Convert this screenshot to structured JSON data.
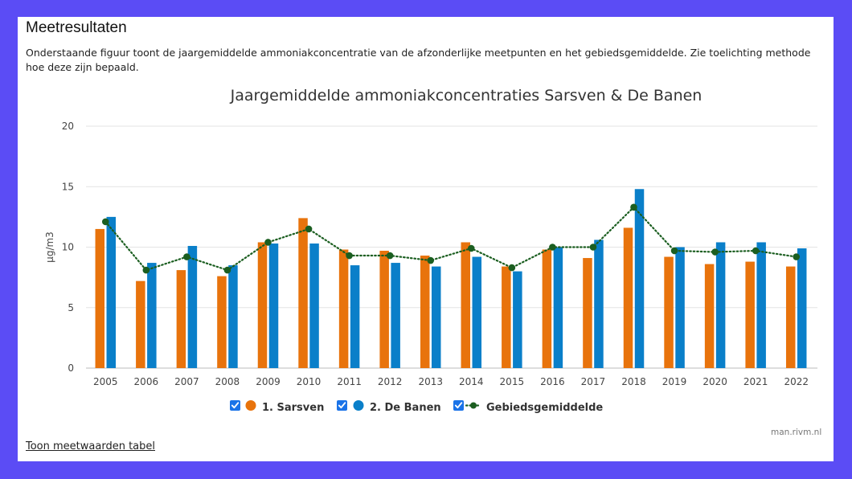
{
  "section": {
    "title": "Meetresultaten",
    "intro": "Onderstaande figuur toont de jaargemiddelde ammoniakconcentratie van de afzonderlijke meetpunten en het gebiedsgemiddelde. Zie toelichting methode hoe deze zijn bepaald."
  },
  "links": {
    "table_toggle": "Toon meetwaarden tabel"
  },
  "credit": "man.rivm.nl",
  "colors": {
    "sarsven": "#e8730c",
    "de_banen": "#0a7fc9",
    "gebied": "#1b5e20",
    "checkbox": "#1a73e8"
  },
  "chart_data": {
    "type": "bar",
    "title": "Jaargemiddelde ammoniakconcentraties Sarsven & De Banen",
    "xlabel": "",
    "ylabel": "µg/m3",
    "ylim": [
      0,
      20
    ],
    "yticks": [
      0,
      5,
      10,
      15,
      20
    ],
    "grid": true,
    "legend_position": "bottom",
    "categories": [
      "2005",
      "2006",
      "2007",
      "2008",
      "2009",
      "2010",
      "2011",
      "2012",
      "2013",
      "2014",
      "2015",
      "2016",
      "2017",
      "2018",
      "2019",
      "2020",
      "2021",
      "2022"
    ],
    "series": [
      {
        "name": "1. Sarsven",
        "type": "bar",
        "color": "#e8730c",
        "values": [
          11.5,
          7.2,
          8.1,
          7.6,
          10.4,
          12.4,
          9.8,
          9.7,
          9.3,
          10.4,
          8.4,
          9.8,
          9.1,
          11.6,
          9.2,
          8.6,
          8.8,
          8.4
        ]
      },
      {
        "name": "2. De Banen",
        "type": "bar",
        "color": "#0a7fc9",
        "values": [
          12.5,
          8.7,
          10.1,
          8.5,
          10.3,
          10.3,
          8.5,
          8.7,
          8.4,
          9.2,
          8.0,
          10.0,
          10.6,
          14.8,
          10.0,
          10.4,
          10.4,
          9.9
        ]
      },
      {
        "name": "Gebiedsgemiddelde",
        "type": "line",
        "style": "dotted",
        "color": "#1b5e20",
        "values": [
          12.1,
          8.1,
          9.2,
          8.1,
          10.4,
          11.5,
          9.3,
          9.3,
          8.9,
          9.9,
          8.3,
          10.0,
          10.0,
          13.3,
          9.7,
          9.6,
          9.7,
          9.2
        ]
      }
    ]
  }
}
